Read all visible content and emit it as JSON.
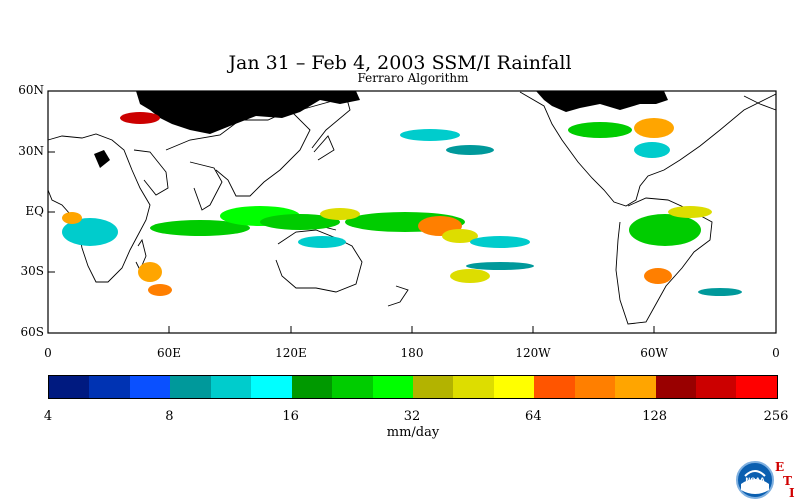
{
  "title": "Jan 31 – Feb 4, 2003 SSM/I Rainfall",
  "subtitle": "Ferraro Algorithm",
  "lat_labels": [
    "60N",
    "30N",
    "EQ",
    "30S",
    "60S"
  ],
  "lon_labels": [
    "0",
    "60E",
    "120E",
    "180",
    "120W",
    "60W",
    "0"
  ],
  "colorbar": {
    "colors": [
      "#001a80",
      "#0033b3",
      "#0a50ff",
      "#00999b",
      "#00cccc",
      "#00ffff",
      "#009900",
      "#00cc00",
      "#00ff00",
      "#b3b300",
      "#dddd00",
      "#ffff00",
      "#ff5500",
      "#ff7f00",
      "#ffa500",
      "#990000",
      "#cc0000",
      "#ff0000"
    ],
    "ticks": [
      "4",
      "8",
      "16",
      "32",
      "64",
      "128",
      "256"
    ],
    "units": "mm/day"
  },
  "logo": {
    "text": "NOAA",
    "letters": [
      "E",
      "T",
      "I"
    ]
  }
}
